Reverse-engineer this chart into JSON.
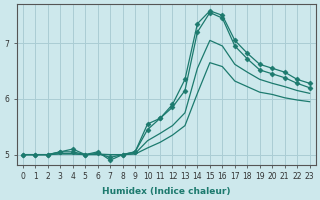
{
  "xlabel": "Humidex (Indice chaleur)",
  "xlim": [
    -0.5,
    23.5
  ],
  "ylim": [
    4.82,
    7.7
  ],
  "yticks": [
    5,
    6,
    7
  ],
  "xticks": [
    0,
    1,
    2,
    3,
    4,
    5,
    6,
    7,
    8,
    9,
    10,
    11,
    12,
    13,
    14,
    15,
    16,
    17,
    18,
    19,
    20,
    21,
    22,
    23
  ],
  "background_color": "#cde8ec",
  "grid_color": "#aacdd4",
  "line_color": "#1c7a6e",
  "lines": [
    {
      "x": [
        0,
        1,
        2,
        3,
        4,
        5,
        6,
        7,
        8,
        9,
        10,
        11,
        12,
        13,
        14,
        15,
        16,
        17,
        18,
        19,
        20,
        21,
        22,
        23
      ],
      "y": [
        5.0,
        5.0,
        5.0,
        5.05,
        5.1,
        5.0,
        5.05,
        4.9,
        5.0,
        5.05,
        5.45,
        5.65,
        5.9,
        6.35,
        7.35,
        7.58,
        7.5,
        7.05,
        6.82,
        6.62,
        6.55,
        6.48,
        6.35,
        6.28
      ],
      "marker": "D",
      "markersize": 2.5
    },
    {
      "x": [
        0,
        1,
        2,
        3,
        4,
        5,
        6,
        7,
        8,
        9,
        10,
        11,
        12,
        13,
        14,
        15,
        16,
        17,
        18,
        19,
        20,
        21,
        22,
        23
      ],
      "y": [
        5.0,
        5.0,
        5.0,
        5.05,
        5.05,
        5.0,
        5.02,
        4.95,
        5.0,
        5.05,
        5.55,
        5.65,
        5.85,
        6.15,
        7.2,
        7.55,
        7.45,
        6.95,
        6.72,
        6.52,
        6.45,
        6.38,
        6.28,
        6.2
      ],
      "marker": "D",
      "markersize": 2.5
    },
    {
      "x": [
        0,
        1,
        2,
        3,
        4,
        5,
        6,
        7,
        8,
        9,
        10,
        11,
        12,
        13,
        14,
        15,
        16,
        17,
        18,
        19,
        20,
        21,
        22,
        23
      ],
      "y": [
        5.0,
        5.0,
        5.0,
        5.02,
        5.02,
        5.0,
        5.01,
        5.0,
        5.0,
        5.02,
        5.25,
        5.38,
        5.52,
        5.75,
        6.55,
        7.05,
        6.95,
        6.62,
        6.48,
        6.35,
        6.28,
        6.22,
        6.15,
        6.1
      ],
      "marker": null,
      "markersize": 0
    },
    {
      "x": [
        0,
        1,
        2,
        3,
        4,
        5,
        6,
        7,
        8,
        9,
        10,
        11,
        12,
        13,
        14,
        15,
        16,
        17,
        18,
        19,
        20,
        21,
        22,
        23
      ],
      "y": [
        5.0,
        5.0,
        5.0,
        5.01,
        5.01,
        5.0,
        5.0,
        5.0,
        5.0,
        5.01,
        5.12,
        5.22,
        5.35,
        5.52,
        6.1,
        6.65,
        6.58,
        6.32,
        6.22,
        6.12,
        6.08,
        6.02,
        5.98,
        5.95
      ],
      "marker": null,
      "markersize": 0
    }
  ]
}
